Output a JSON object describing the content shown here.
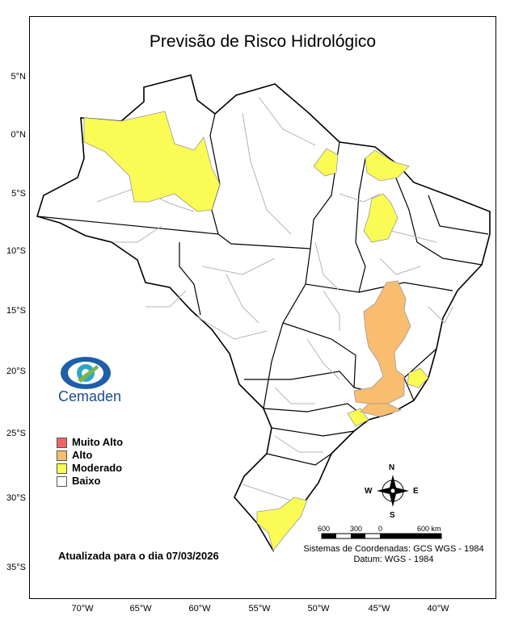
{
  "title": "Previsão de Risco Hidrológico",
  "lat_labels": [
    "5°N",
    "0°N",
    "5°S",
    "10°S",
    "15°S",
    "20°S",
    "25°S",
    "30°S",
    "35°S"
  ],
  "lon_labels": [
    "70°W",
    "65°W",
    "60°W",
    "55°W",
    "50°W",
    "45°W",
    "40°W"
  ],
  "legend": [
    {
      "label": "Muito Alto",
      "color": "#f26464"
    },
    {
      "label": "Alto",
      "color": "#f9bd70"
    },
    {
      "label": "Moderado",
      "color": "#fbfb55"
    },
    {
      "label": "Baixo",
      "color": "#ffffff"
    }
  ],
  "logo": {
    "name": "Cemaden"
  },
  "updated": "Atualizada para o dia 07/03/2026",
  "compass": {
    "n": "N",
    "s": "S",
    "e": "E",
    "w": "W"
  },
  "scale": {
    "labels": [
      "600",
      "300",
      "0",
      "600 km"
    ]
  },
  "crs": {
    "line1": "Sistemas de Coordenadas: GCS WGS - 1984",
    "line2": "Datum: WGS - 1984"
  }
}
